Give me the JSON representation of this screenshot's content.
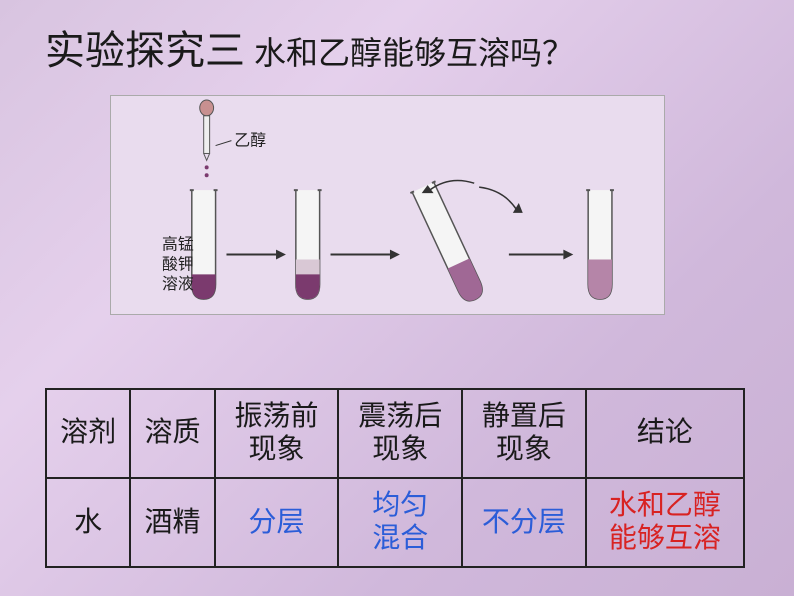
{
  "title": {
    "main": "实验探究三",
    "sub": "水和乙醇能够互溶吗？"
  },
  "diagram": {
    "labels": {
      "ethanol": "乙醇",
      "kmno4_line1": "高锰",
      "kmno4_line2": "酸钾",
      "kmno4_line3": "溶液"
    },
    "colors": {
      "tube_outline": "#555555",
      "liquid": "#7b3a6e",
      "arrow": "#333333",
      "bg": "#e9dcee"
    }
  },
  "table": {
    "headers": {
      "solvent": "溶剂",
      "solute": "溶质",
      "before_shake": "振荡前现象",
      "after_shake": "震荡后现象",
      "after_standing": "静置后现象",
      "conclusion": "结论"
    },
    "row": {
      "solvent": "水",
      "solute": "酒精",
      "before_shake": "分层",
      "after_shake": "均匀混合",
      "after_standing": "不分层",
      "conclusion": "水和乙醇能够互溶"
    },
    "colors": {
      "header_text": "#1a1a1a",
      "value_text": "#2b5dd8",
      "conclusion_text": "#d82222",
      "border": "#222222"
    },
    "font_size": 28
  }
}
